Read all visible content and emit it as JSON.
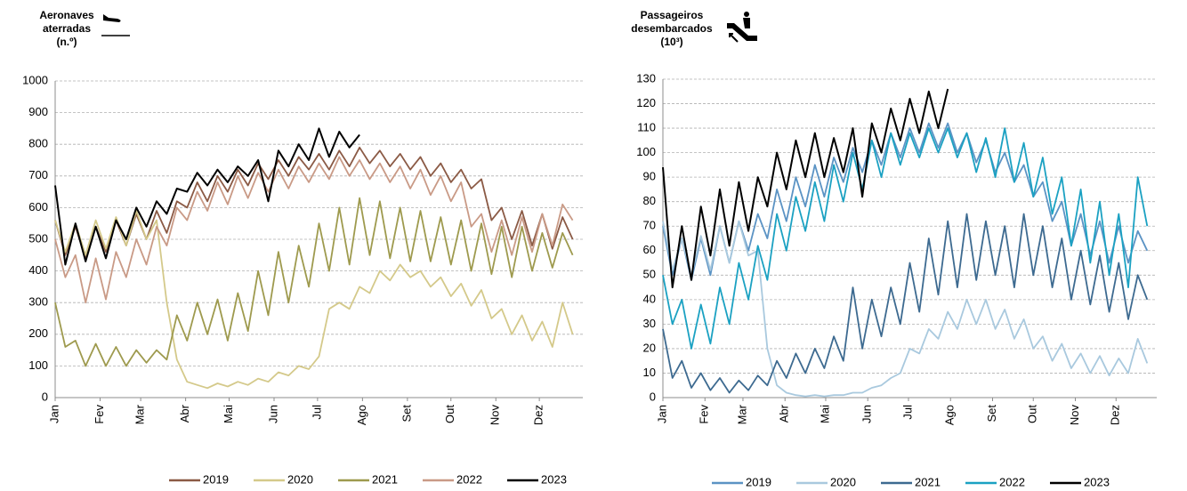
{
  "chart_data": [
    {
      "type": "line",
      "title": [
        "Aeronaves",
        "aterradas",
        "(n.º)"
      ],
      "x": [
        1,
        8,
        15,
        22,
        29,
        36,
        43,
        50,
        57,
        64,
        71,
        78,
        85,
        92,
        99,
        106,
        113,
        120,
        127,
        134,
        141,
        148,
        155,
        162,
        169,
        176,
        183,
        190,
        197,
        204,
        211,
        218,
        225,
        232,
        239,
        246,
        253,
        260,
        267,
        274,
        281,
        288,
        295,
        302,
        309,
        316,
        323,
        330,
        337,
        344,
        351,
        358
      ],
      "xlim": [
        1,
        365
      ],
      "xticks": [
        {
          "value": 1,
          "label": "Jan"
        },
        {
          "value": 32,
          "label": "Fev"
        },
        {
          "value": 60,
          "label": "Mar"
        },
        {
          "value": 91,
          "label": "Abr"
        },
        {
          "value": 121,
          "label": "Mai"
        },
        {
          "value": 152,
          "label": "Jun"
        },
        {
          "value": 182,
          "label": "Jul"
        },
        {
          "value": 213,
          "label": "Ago"
        },
        {
          "value": 244,
          "label": "Set"
        },
        {
          "value": 274,
          "label": "Out"
        },
        {
          "value": 305,
          "label": "Nov"
        },
        {
          "value": 335,
          "label": "Dez"
        }
      ],
      "ylim": [
        0,
        1000
      ],
      "yticks": [
        0,
        100,
        200,
        300,
        400,
        500,
        600,
        700,
        800,
        900,
        1000
      ],
      "grid": true,
      "legend": "bottom",
      "series": [
        {
          "name": "2019",
          "color": "#8b5a45",
          "values": [
            560,
            450,
            540,
            440,
            540,
            460,
            560,
            480,
            580,
            500,
            590,
            520,
            620,
            600,
            680,
            620,
            700,
            650,
            720,
            670,
            740,
            690,
            750,
            700,
            760,
            720,
            770,
            720,
            780,
            730,
            790,
            740,
            780,
            730,
            770,
            720,
            760,
            700,
            740,
            680,
            720,
            660,
            690,
            560,
            600,
            500,
            590,
            480,
            580,
            470,
            570,
            500
          ]
        },
        {
          "name": "2020",
          "color": "#d4c98a",
          "values": [
            560,
            460,
            550,
            450,
            560,
            470,
            570,
            480,
            590,
            500,
            560,
            300,
            120,
            50,
            40,
            30,
            45,
            35,
            50,
            40,
            60,
            50,
            80,
            70,
            100,
            90,
            130,
            280,
            300,
            280,
            350,
            330,
            400,
            370,
            420,
            380,
            400,
            350,
            380,
            320,
            360,
            290,
            340,
            250,
            280,
            200,
            260,
            180,
            240,
            160,
            300,
            200
          ]
        },
        {
          "name": "2021",
          "color": "#9e9a4e",
          "values": [
            300,
            160,
            180,
            100,
            170,
            100,
            160,
            100,
            150,
            110,
            150,
            120,
            260,
            180,
            300,
            200,
            310,
            180,
            330,
            210,
            400,
            260,
            460,
            300,
            480,
            350,
            550,
            400,
            600,
            420,
            630,
            450,
            620,
            440,
            600,
            430,
            590,
            430,
            570,
            420,
            560,
            400,
            550,
            390,
            540,
            380,
            540,
            400,
            520,
            410,
            520,
            450
          ]
        },
        {
          "name": "2022",
          "color": "#c99a86",
          "values": [
            500,
            380,
            450,
            300,
            440,
            310,
            460,
            380,
            500,
            420,
            540,
            480,
            600,
            560,
            650,
            590,
            680,
            610,
            700,
            630,
            710,
            650,
            720,
            660,
            730,
            680,
            740,
            690,
            760,
            700,
            750,
            690,
            740,
            680,
            730,
            660,
            720,
            640,
            700,
            620,
            680,
            540,
            580,
            460,
            560,
            450,
            570,
            460,
            580,
            480,
            610,
            560
          ]
        },
        {
          "name": "2023",
          "color": "#000000",
          "values": [
            670,
            420,
            550,
            430,
            540,
            440,
            560,
            500,
            600,
            540,
            620,
            580,
            660,
            650,
            710,
            670,
            720,
            680,
            730,
            700,
            750,
            620,
            780,
            730,
            800,
            750,
            850,
            760,
            840,
            790,
            830,
            null,
            null,
            null,
            null,
            null,
            null,
            null,
            null,
            null,
            null,
            null,
            null,
            null,
            null,
            null,
            null,
            null,
            null,
            null,
            null,
            null
          ]
        }
      ]
    },
    {
      "type": "line",
      "title": [
        "Passageiros",
        "desembarcados",
        "(10³)"
      ],
      "x": [
        1,
        8,
        15,
        22,
        29,
        36,
        43,
        50,
        57,
        64,
        71,
        78,
        85,
        92,
        99,
        106,
        113,
        120,
        127,
        134,
        141,
        148,
        155,
        162,
        169,
        176,
        183,
        190,
        197,
        204,
        211,
        218,
        225,
        232,
        239,
        246,
        253,
        260,
        267,
        274,
        281,
        288,
        295,
        302,
        309,
        316,
        323,
        330,
        337,
        344,
        351,
        358
      ],
      "xlim": [
        1,
        365
      ],
      "xticks": [
        {
          "value": 1,
          "label": "Jan"
        },
        {
          "value": 32,
          "label": "Fev"
        },
        {
          "value": 60,
          "label": "Mar"
        },
        {
          "value": 91,
          "label": "Abr"
        },
        {
          "value": 121,
          "label": "Mai"
        },
        {
          "value": 152,
          "label": "Jun"
        },
        {
          "value": 182,
          "label": "Jul"
        },
        {
          "value": 213,
          "label": "Ago"
        },
        {
          "value": 244,
          "label": "Set"
        },
        {
          "value": 274,
          "label": "Out"
        },
        {
          "value": 305,
          "label": "Nov"
        },
        {
          "value": 335,
          "label": "Dez"
        }
      ],
      "ylim": [
        0,
        130
      ],
      "yticks": [
        0,
        10,
        20,
        30,
        40,
        50,
        60,
        70,
        80,
        90,
        100,
        110,
        120,
        130
      ],
      "grid": true,
      "legend": "bottom",
      "series": [
        {
          "name": "2019",
          "color": "#5b93c4",
          "values": [
            70,
            50,
            65,
            48,
            65,
            50,
            70,
            55,
            72,
            60,
            75,
            65,
            85,
            72,
            90,
            78,
            95,
            82,
            98,
            88,
            102,
            92,
            105,
            95,
            108,
            98,
            110,
            100,
            112,
            102,
            112,
            100,
            108,
            96,
            105,
            92,
            100,
            88,
            95,
            82,
            88,
            72,
            80,
            62,
            75,
            58,
            72,
            55,
            70,
            55,
            68,
            60
          ]
        },
        {
          "name": "2020",
          "color": "#a9c9de",
          "values": [
            72,
            52,
            65,
            50,
            66,
            52,
            70,
            55,
            72,
            58,
            60,
            20,
            5,
            2,
            1,
            0.5,
            1,
            0.5,
            1,
            1,
            2,
            2,
            4,
            5,
            8,
            10,
            20,
            18,
            28,
            24,
            35,
            28,
            40,
            30,
            40,
            28,
            36,
            24,
            32,
            20,
            25,
            15,
            22,
            12,
            18,
            10,
            17,
            9,
            16,
            10,
            24,
            14
          ]
        },
        {
          "name": "2021",
          "color": "#3d6a90",
          "values": [
            28,
            8,
            15,
            4,
            10,
            3,
            8,
            2,
            7,
            3,
            9,
            5,
            15,
            8,
            18,
            10,
            20,
            12,
            25,
            15,
            45,
            20,
            40,
            25,
            45,
            30,
            55,
            35,
            65,
            42,
            72,
            45,
            75,
            48,
            72,
            50,
            70,
            45,
            75,
            50,
            70,
            45,
            65,
            40,
            60,
            38,
            58,
            35,
            55,
            32,
            50,
            40
          ]
        },
        {
          "name": "2022",
          "color": "#1ba1c2",
          "values": [
            50,
            30,
            40,
            20,
            38,
            22,
            45,
            30,
            55,
            40,
            62,
            48,
            75,
            60,
            82,
            68,
            88,
            72,
            95,
            80,
            100,
            85,
            105,
            90,
            108,
            95,
            108,
            98,
            110,
            100,
            110,
            98,
            108,
            92,
            106,
            90,
            110,
            88,
            104,
            82,
            98,
            75,
            90,
            62,
            85,
            55,
            80,
            50,
            75,
            45,
            90,
            70
          ]
        },
        {
          "name": "2023",
          "color": "#000000",
          "values": [
            94,
            45,
            70,
            48,
            78,
            58,
            85,
            62,
            88,
            68,
            90,
            78,
            100,
            85,
            105,
            90,
            108,
            90,
            106,
            92,
            110,
            82,
            112,
            100,
            118,
            105,
            122,
            108,
            125,
            110,
            126,
            null,
            null,
            null,
            null,
            null,
            null,
            null,
            null,
            null,
            null,
            null,
            null,
            null,
            null,
            null,
            null,
            null,
            null,
            null,
            null,
            null
          ]
        }
      ]
    }
  ]
}
